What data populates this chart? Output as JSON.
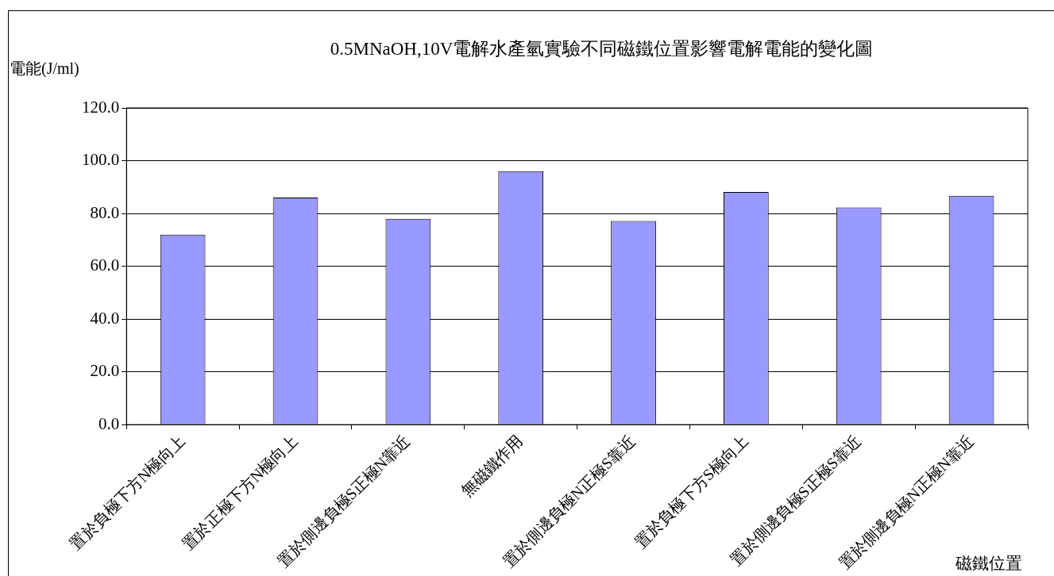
{
  "chart_data": {
    "type": "bar",
    "title": "0.5MNaOH,10V電解水產氫實驗不同磁鐵位置影響電解電能的變化圖",
    "ylabel": "電能(J/ml)",
    "xlabel": "磁鐵位置",
    "categories": [
      "置於負極下方N極向上",
      "置於正極下方N極向上",
      "置於側邊負極S正極N靠近",
      "無磁鐵作用",
      "置於側邊負極N正極S靠近",
      "置於負極下方S極向上",
      "置於側邊負極S正極S靠近",
      "置於側邊負極N正極N靠近"
    ],
    "values": [
      72,
      86,
      78,
      96,
      77.2,
      88.1,
      82.3,
      86.7
    ],
    "color": "#9999ff",
    "ylim": [
      0,
      120
    ],
    "yticks": [
      {
        "value": 0,
        "label": "0.0"
      },
      {
        "value": 20,
        "label": "20.0"
      },
      {
        "value": 40,
        "label": "40.0"
      },
      {
        "value": 60,
        "label": "60.0"
      },
      {
        "value": 80,
        "label": "80.0"
      },
      {
        "value": 100,
        "label": "100.0"
      },
      {
        "value": 120,
        "label": "120.0"
      }
    ],
    "grid": "y",
    "legend": false
  }
}
